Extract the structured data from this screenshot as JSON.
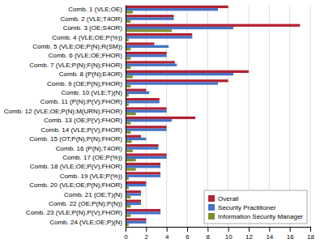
{
  "chart_data": {
    "type": "bar",
    "orientation": "horizontal",
    "categories": [
      "Comb. 1 (VLE;OE)",
      "Comb. 2 (VLE;T4OR)",
      "Comb. 3 (OE;S4OR)",
      "Comb. 4 (VLE;OE;P(%))",
      "Comb. 5 (VLE;OE;P(N);R(SM))",
      "Comb. 6 (VLE;OE;FHOR)",
      "Comb. 7 (VLE;P(N);F(N);FHOR)",
      "Comb. 8 (P(N);E4OR)",
      "Comb. 9 (OE;P(N);FHOR)",
      "Comb. 10 (VLE;T)(N)",
      "Comb. 11 (P(N);P(V);FHOR)",
      "Comb. 12 (VLE;OE;P(N);M(URN);FHOR)",
      "Comb. 13 (OE;P(V);FHOR)",
      "Comb. 14 (VLE;P(V);FHOR)",
      "Comb. 15 (OT;P(N);P(N);FHOR)",
      "Comb. 16 (P(N);T4OR)",
      "Comb. 17 (OE;P(%))",
      "Comb. 18 (VLE;OE;P(V);FHOR)",
      "Comb. 19 (VLE;P(%))",
      "Comb. 20 (VLE;OE;P(N);FHOR)",
      "Comb. 21 (OE;T)(N)",
      "Comb. 22 (OE;P(N);P(N))",
      "Comb. 23 (VLE;P(N);P(V);FHOR)",
      "Comb. 24 (VLE;OE;P)(N)"
    ],
    "series": [
      {
        "name": "Overall",
        "color": "#B22234",
        "values": [
          10.0,
          4.7,
          17.0,
          6.5,
          2.8,
          4.0,
          4.8,
          12.0,
          10.0,
          2.0,
          3.3,
          4.0,
          6.8,
          4.0,
          1.5,
          3.2,
          4.0,
          3.4,
          3.4,
          2.0,
          1.5,
          1.5,
          3.4,
          2.0
        ]
      },
      {
        "name": "Security Practitioner",
        "color": "#4472C4",
        "values": [
          9.0,
          4.7,
          10.5,
          6.5,
          4.2,
          4.0,
          5.0,
          10.5,
          9.0,
          2.3,
          3.3,
          4.0,
          4.5,
          4.0,
          2.0,
          3.2,
          4.0,
          3.4,
          3.4,
          2.0,
          1.5,
          1.5,
          3.4,
          2.0
        ]
      },
      {
        "name": "Information Security Manager",
        "color": "#7F8C2E",
        "values": [
          0.7,
          0.5,
          4.5,
          0.3,
          0.5,
          0.5,
          0.5,
          0.7,
          0.5,
          0.3,
          0.3,
          1.0,
          0.5,
          0.5,
          0.6,
          0.7,
          1.0,
          1.0,
          0.3,
          0.3,
          0.5,
          0.5,
          0.5,
          0.3
        ]
      }
    ],
    "xlim": [
      0,
      18
    ],
    "xticks": [
      0,
      2,
      4,
      6,
      8,
      10,
      12,
      14,
      16,
      18
    ],
    "grid": true,
    "legend": "lower right"
  }
}
